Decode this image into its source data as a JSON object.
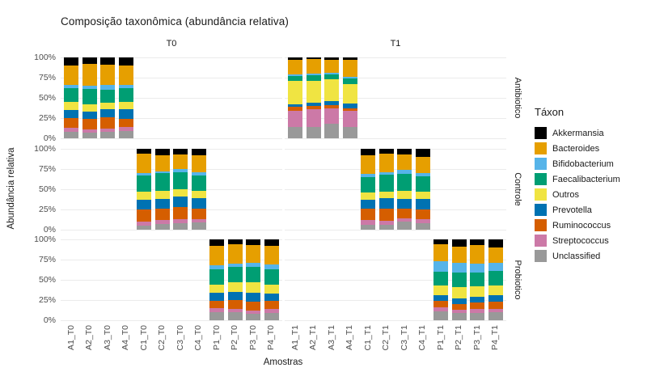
{
  "chart_data": {
    "type": "bar",
    "stacked": true,
    "orientation": "vertical",
    "title": "Composição taxonômica (abundância relativa)",
    "xlabel": "Amostras",
    "ylabel": "Abundância relativa",
    "legend_title": "Táxon",
    "legend_position": "right",
    "grid": true,
    "ylim": [
      0,
      100
    ],
    "y_ticks_top_to_bottom": [
      "100%",
      "75%",
      "50%",
      "25%",
      "0%"
    ],
    "facet_cols": [
      "T0",
      "T1"
    ],
    "facet_rows": [
      "Antibiotico",
      "Controle",
      "Probiotico"
    ],
    "taxa": [
      {
        "name": "Akkermansia",
        "color": "#000000"
      },
      {
        "name": "Bacteroides",
        "color": "#E69F00"
      },
      {
        "name": "Bifidobacterium",
        "color": "#56B4E9"
      },
      {
        "name": "Faecalibacterium",
        "color": "#009E73"
      },
      {
        "name": "Outros",
        "color": "#F0E442"
      },
      {
        "name": "Prevotella",
        "color": "#0072B2"
      },
      {
        "name": "Ruminococcus",
        "color": "#D55E00"
      },
      {
        "name": "Streptococcus",
        "color": "#CC79A7"
      },
      {
        "name": "Unclassified",
        "color": "#999999"
      }
    ],
    "stack_order_note": "segments drawn top-to-bottom in taxa order (Akkermansia on top, Unclassified at bottom)",
    "x_categories": {
      "T0": [
        "A1_T0",
        "A2_T0",
        "A3_T0",
        "A4_T0",
        "C1_T0",
        "C2_T0",
        "C3_T0",
        "C4_T0",
        "P1_T0",
        "P2_T0",
        "P3_T0",
        "P4_T0"
      ],
      "T1": [
        "A1_T1",
        "A2_T1",
        "A3_T1",
        "A4_T1",
        "C1_T1",
        "C2_T1",
        "C3_T1",
        "C4_T1",
        "P1_T1",
        "P2_T1",
        "P3_T1",
        "P4_T1"
      ]
    },
    "values_unit": "percent",
    "bars": [
      {
        "sample": "A1_T0",
        "group": "Antibiotico",
        "tempo": "T0",
        "slot": 0,
        "values": {
          "Akkermansia": 10,
          "Bacteroides": 24,
          "Bifidobacterium": 4,
          "Faecalibacterium": 17,
          "Outros": 10,
          "Prevotella": 10,
          "Ruminococcus": 12,
          "Streptococcus": 5,
          "Unclassified": 8
        }
      },
      {
        "sample": "A2_T0",
        "group": "Antibiotico",
        "tempo": "T0",
        "slot": 1,
        "values": {
          "Akkermansia": 8,
          "Bacteroides": 27,
          "Bifidobacterium": 4,
          "Faecalibacterium": 19,
          "Outros": 9,
          "Prevotella": 9,
          "Ruminococcus": 13,
          "Streptococcus": 4,
          "Unclassified": 7
        }
      },
      {
        "sample": "A3_T0",
        "group": "Antibiotico",
        "tempo": "T0",
        "slot": 2,
        "values": {
          "Akkermansia": 9,
          "Bacteroides": 25,
          "Bifidobacterium": 6,
          "Faecalibacterium": 16,
          "Outros": 8,
          "Prevotella": 10,
          "Ruminococcus": 14,
          "Streptococcus": 4,
          "Unclassified": 8
        }
      },
      {
        "sample": "A4_T0",
        "group": "Antibiotico",
        "tempo": "T0",
        "slot": 3,
        "values": {
          "Akkermansia": 10,
          "Bacteroides": 24,
          "Bifidobacterium": 4,
          "Faecalibacterium": 17,
          "Outros": 9,
          "Prevotella": 12,
          "Ruminococcus": 10,
          "Streptococcus": 5,
          "Unclassified": 9
        }
      },
      {
        "sample": "C1_T0",
        "group": "Controle",
        "tempo": "T0",
        "slot": 4,
        "values": {
          "Akkermansia": 6,
          "Bacteroides": 24,
          "Bifidobacterium": 3,
          "Faecalibacterium": 20,
          "Outros": 10,
          "Prevotella": 12,
          "Ruminococcus": 15,
          "Streptococcus": 5,
          "Unclassified": 5
        }
      },
      {
        "sample": "C2_T0",
        "group": "Controle",
        "tempo": "T0",
        "slot": 5,
        "values": {
          "Akkermansia": 8,
          "Bacteroides": 20,
          "Bifidobacterium": 2,
          "Faecalibacterium": 22,
          "Outros": 10,
          "Prevotella": 12,
          "Ruminococcus": 14,
          "Streptococcus": 5,
          "Unclassified": 7
        }
      },
      {
        "sample": "C3_T0",
        "group": "Controle",
        "tempo": "T0",
        "slot": 6,
        "values": {
          "Akkermansia": 7,
          "Bacteroides": 18,
          "Bifidobacterium": 4,
          "Faecalibacterium": 21,
          "Outros": 9,
          "Prevotella": 13,
          "Ruminococcus": 15,
          "Streptococcus": 5,
          "Unclassified": 8
        }
      },
      {
        "sample": "C4_T0",
        "group": "Controle",
        "tempo": "T0",
        "slot": 7,
        "values": {
          "Akkermansia": 8,
          "Bacteroides": 21,
          "Bifidobacterium": 4,
          "Faecalibacterium": 19,
          "Outros": 9,
          "Prevotella": 13,
          "Ruminococcus": 13,
          "Streptococcus": 4,
          "Unclassified": 9
        }
      },
      {
        "sample": "P1_T0",
        "group": "Probiotico",
        "tempo": "T0",
        "slot": 8,
        "values": {
          "Akkermansia": 8,
          "Bacteroides": 24,
          "Bifidobacterium": 5,
          "Faecalibacterium": 19,
          "Outros": 10,
          "Prevotella": 10,
          "Ruminococcus": 9,
          "Streptococcus": 5,
          "Unclassified": 10
        }
      },
      {
        "sample": "P2_T0",
        "group": "Probiotico",
        "tempo": "T0",
        "slot": 9,
        "values": {
          "Akkermansia": 6,
          "Bacteroides": 24,
          "Bifidobacterium": 4,
          "Faecalibacterium": 19,
          "Outros": 12,
          "Prevotella": 10,
          "Ruminococcus": 11,
          "Streptococcus": 4,
          "Unclassified": 10
        }
      },
      {
        "sample": "P3_T0",
        "group": "Probiotico",
        "tempo": "T0",
        "slot": 10,
        "values": {
          "Akkermansia": 7,
          "Bacteroides": 22,
          "Bifidobacterium": 5,
          "Faecalibacterium": 19,
          "Outros": 13,
          "Prevotella": 11,
          "Ruminococcus": 11,
          "Streptococcus": 4,
          "Unclassified": 8
        }
      },
      {
        "sample": "P4_T0",
        "group": "Probiotico",
        "tempo": "T0",
        "slot": 11,
        "values": {
          "Akkermansia": 8,
          "Bacteroides": 23,
          "Bifidobacterium": 6,
          "Faecalibacterium": 19,
          "Outros": 11,
          "Prevotella": 9,
          "Ruminococcus": 10,
          "Streptococcus": 5,
          "Unclassified": 9
        }
      },
      {
        "sample": "A1_T1",
        "group": "Antibiotico",
        "tempo": "T1",
        "slot": 0,
        "values": {
          "Akkermansia": 3,
          "Bacteroides": 18,
          "Bifidobacterium": 2,
          "Faecalibacterium": 6,
          "Outros": 29,
          "Prevotella": 3,
          "Ruminococcus": 5,
          "Streptococcus": 20,
          "Unclassified": 14
        }
      },
      {
        "sample": "A2_T1",
        "group": "Antibiotico",
        "tempo": "T1",
        "slot": 1,
        "values": {
          "Akkermansia": 2,
          "Bacteroides": 18,
          "Bifidobacterium": 2,
          "Faecalibacterium": 7,
          "Outros": 27,
          "Prevotella": 4,
          "Ruminococcus": 4,
          "Streptococcus": 22,
          "Unclassified": 14
        }
      },
      {
        "sample": "A3_T1",
        "group": "Antibiotico",
        "tempo": "T1",
        "slot": 2,
        "values": {
          "Akkermansia": 3,
          "Bacteroides": 16,
          "Bifidobacterium": 2,
          "Faecalibacterium": 6,
          "Outros": 27,
          "Prevotella": 5,
          "Ruminococcus": 4,
          "Streptococcus": 19,
          "Unclassified": 18
        }
      },
      {
        "sample": "A4_T1",
        "group": "Antibiotico",
        "tempo": "T1",
        "slot": 3,
        "values": {
          "Akkermansia": 3,
          "Bacteroides": 21,
          "Bifidobacterium": 2,
          "Faecalibacterium": 7,
          "Outros": 24,
          "Prevotella": 6,
          "Ruminococcus": 3,
          "Streptococcus": 20,
          "Unclassified": 14
        }
      },
      {
        "sample": "C1_T1",
        "group": "Controle",
        "tempo": "T1",
        "slot": 4,
        "values": {
          "Akkermansia": 8,
          "Bacteroides": 23,
          "Bifidobacterium": 4,
          "Faecalibacterium": 19,
          "Outros": 9,
          "Prevotella": 11,
          "Ruminococcus": 14,
          "Streptococcus": 6,
          "Unclassified": 6
        }
      },
      {
        "sample": "C2_T1",
        "group": "Controle",
        "tempo": "T1",
        "slot": 5,
        "values": {
          "Akkermansia": 6,
          "Bacteroides": 23,
          "Bifidobacterium": 3,
          "Faecalibacterium": 21,
          "Outros": 8,
          "Prevotella": 13,
          "Ruminococcus": 15,
          "Streptococcus": 5,
          "Unclassified": 6
        }
      },
      {
        "sample": "C3_T1",
        "group": "Controle",
        "tempo": "T1",
        "slot": 6,
        "values": {
          "Akkermansia": 7,
          "Bacteroides": 19,
          "Bifidobacterium": 5,
          "Faecalibacterium": 21,
          "Outros": 10,
          "Prevotella": 12,
          "Ruminococcus": 12,
          "Streptococcus": 4,
          "Unclassified": 10
        }
      },
      {
        "sample": "C4_T1",
        "group": "Controle",
        "tempo": "T1",
        "slot": 7,
        "values": {
          "Akkermansia": 10,
          "Bacteroides": 20,
          "Bifidobacterium": 4,
          "Faecalibacterium": 19,
          "Outros": 9,
          "Prevotella": 13,
          "Ruminococcus": 12,
          "Streptococcus": 5,
          "Unclassified": 8
        }
      },
      {
        "sample": "P1_T1",
        "group": "Probiotico",
        "tempo": "T1",
        "slot": 8,
        "values": {
          "Akkermansia": 6,
          "Bacteroides": 21,
          "Bifidobacterium": 13,
          "Faecalibacterium": 17,
          "Outros": 12,
          "Prevotella": 7,
          "Ruminococcus": 8,
          "Streptococcus": 5,
          "Unclassified": 11
        }
      },
      {
        "sample": "P2_T1",
        "group": "Probiotico",
        "tempo": "T1",
        "slot": 9,
        "values": {
          "Akkermansia": 9,
          "Bacteroides": 20,
          "Bifidobacterium": 12,
          "Faecalibacterium": 18,
          "Outros": 14,
          "Prevotella": 7,
          "Ruminococcus": 7,
          "Streptococcus": 4,
          "Unclassified": 9
        }
      },
      {
        "sample": "P3_T1",
        "group": "Probiotico",
        "tempo": "T1",
        "slot": 10,
        "values": {
          "Akkermansia": 7,
          "Bacteroides": 23,
          "Bifidobacterium": 11,
          "Faecalibacterium": 17,
          "Outros": 13,
          "Prevotella": 7,
          "Ruminococcus": 8,
          "Streptococcus": 5,
          "Unclassified": 9
        }
      },
      {
        "sample": "P4_T1",
        "group": "Probiotico",
        "tempo": "T1",
        "slot": 11,
        "values": {
          "Akkermansia": 10,
          "Bacteroides": 19,
          "Bifidobacterium": 10,
          "Faecalibacterium": 18,
          "Outros": 12,
          "Prevotella": 8,
          "Ruminococcus": 9,
          "Streptococcus": 4,
          "Unclassified": 10
        }
      }
    ]
  }
}
